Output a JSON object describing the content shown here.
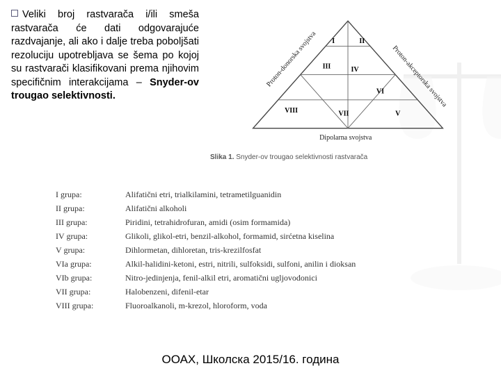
{
  "paragraph": {
    "text": "Veliki broj rastvarača i/ili smeša rastvarača će dati odgovarajuće razdvajanje, ali ako i dalje treba poboljšati rezoluciju upotrebljava se šema po kojoj su rastvarači klasifikovani prema njihovim specifičnim interakcijama – ",
    "bold": "Snyder-ov trougao selektivnosti."
  },
  "triangle": {
    "axis_left": "Proton-donorska svojstva",
    "axis_right": "Proton-akceptorska svojstva",
    "axis_bottom": "Dipolarna svojstva",
    "regions": [
      "I",
      "II",
      "III",
      "IV",
      "V",
      "VI",
      "VII",
      "VIII"
    ],
    "caption_prefix": "Slika 1.",
    "caption_text": "Snyder-ov trougao selektivnosti rastvarača",
    "line_color": "#555555",
    "bg": "#ffffff"
  },
  "groups": [
    {
      "k": "I grupa:",
      "v": "Alifatični etri, trialkilamini, tetrametilguanidin"
    },
    {
      "k": "II grupa:",
      "v": "Alifatični alkoholi"
    },
    {
      "k": "III grupa:",
      "v": "Piridini, tetrahidrofuran, amidi (osim formamida)"
    },
    {
      "k": "IV grupa:",
      "v": "Glikoli, glikol-etri, benzil-alkohol, formamid, sirćetna kiselina"
    },
    {
      "k": "V grupa:",
      "v": "Dihlormetan, dihloretan, tris-krezilfosfat"
    },
    {
      "k": "VIa grupa:",
      "v": "Alkil-halidini-ketoni, estri, nitrili, sulfoksidi, sulfoni, anilin i dioksan"
    },
    {
      "k": "VIb grupa:",
      "v": "Nitro-jedinjenja, fenil-alkil etri, aromatični ugljovodonici"
    },
    {
      "k": "VII grupa:",
      "v": "Halobenzeni, difenil-etar"
    },
    {
      "k": "VIII grupa:",
      "v": "Fluoroalkanoli, m-krezol, hloroform, voda"
    }
  ],
  "footer": "ООАХ, Школска 2015/16. година"
}
